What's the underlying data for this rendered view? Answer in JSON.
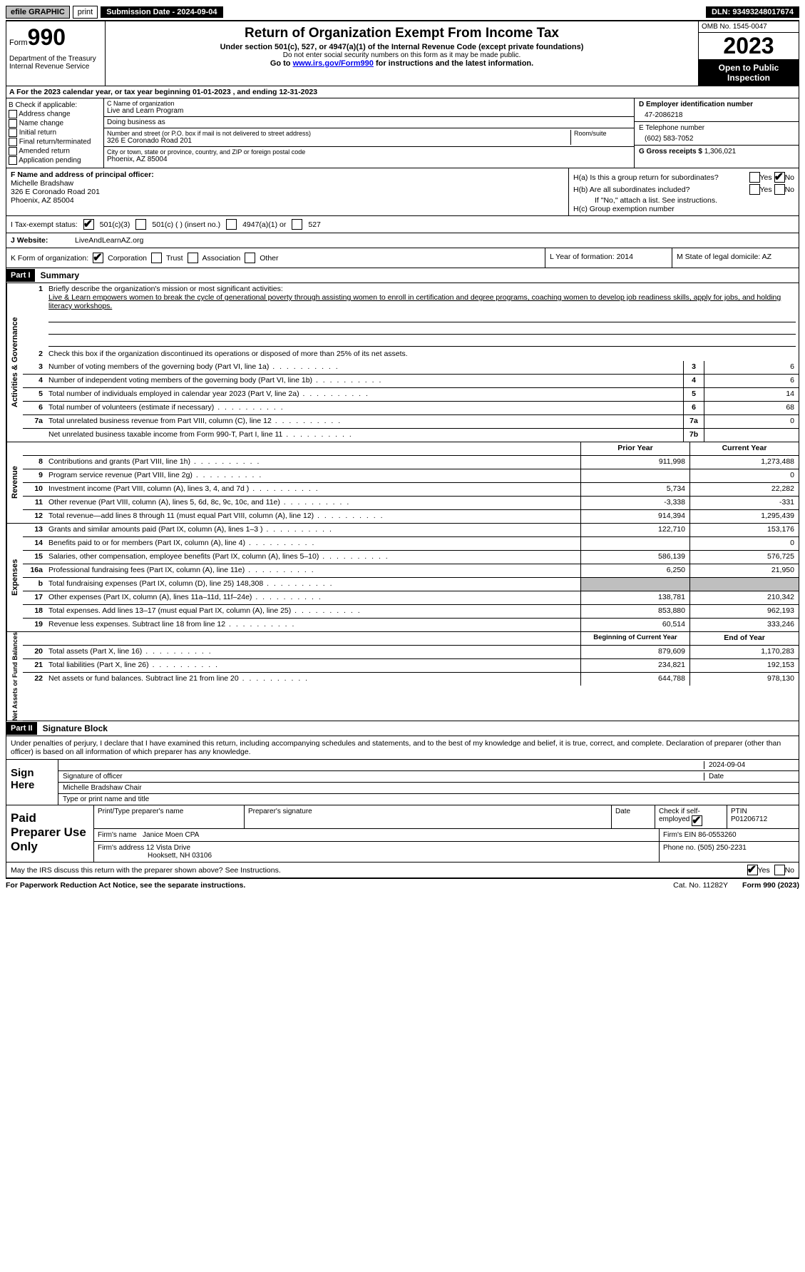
{
  "topbar": {
    "efile": "efile GRAPHIC",
    "print": "print",
    "submission": "Submission Date - 2024-09-04",
    "dln": "DLN: 93493248017674"
  },
  "header": {
    "form_word": "Form",
    "form_num": "990",
    "title": "Return of Organization Exempt From Income Tax",
    "sub1": "Under section 501(c), 527, or 4947(a)(1) of the Internal Revenue Code (except private foundations)",
    "sub2": "Do not enter social security numbers on this form as it may be made public.",
    "sub3_pre": "Go to ",
    "sub3_link": "www.irs.gov/Form990",
    "sub3_post": " for instructions and the latest information.",
    "dept": "Department of the Treasury\nInternal Revenue Service",
    "omb": "OMB No. 1545-0047",
    "year": "2023",
    "open": "Open to Public Inspection"
  },
  "calyear": "A  For the 2023 calendar year, or tax year beginning 01-01-2023   , and ending 12-31-2023",
  "colB": {
    "hdr": "B Check if applicable:",
    "items": [
      "Address change",
      "Name change",
      "Initial return",
      "Final return/terminated",
      "Amended return",
      "Application pending"
    ]
  },
  "colC": {
    "name_lbl": "C Name of organization",
    "name": "Live and Learn Program",
    "dba_lbl": "Doing business as",
    "street_lbl": "Number and street (or P.O. box if mail is not delivered to street address)",
    "street": "326 E Coronado Road 201",
    "room_lbl": "Room/suite",
    "city_lbl": "City or town, state or province, country, and ZIP or foreign postal code",
    "city": "Phoenix, AZ  85004"
  },
  "colD": {
    "ein_lbl": "D Employer identification number",
    "ein": "47-2086218",
    "tel_lbl": "E Telephone number",
    "tel": "(602) 583-7052",
    "gross_lbl": "G Gross receipts $",
    "gross": "1,306,021"
  },
  "colF": {
    "lbl": "F  Name and address of principal officer:",
    "name": "Michelle Bradshaw",
    "addr1": "326 E Coronado Road 201",
    "addr2": "Phoenix, AZ  85004"
  },
  "colH": {
    "ha": "H(a)  Is this a group return for subordinates?",
    "hb": "H(b)  Are all subordinates included?",
    "hb_note": "If \"No,\" attach a list. See instructions.",
    "hc": "H(c)  Group exemption number",
    "yes": "Yes",
    "no": "No"
  },
  "rowI": {
    "lbl": "I   Tax-exempt status:",
    "o1": "501(c)(3)",
    "o2": "501(c) (  ) (insert no.)",
    "o3": "4947(a)(1) or",
    "o4": "527"
  },
  "rowJ": {
    "lbl": "J   Website:",
    "val": "LiveAndLearnAZ.org"
  },
  "rowK": {
    "lbl": "K Form of organization:",
    "o1": "Corporation",
    "o2": "Trust",
    "o3": "Association",
    "o4": "Other",
    "L": "L Year of formation: 2014",
    "M": "M State of legal domicile: AZ"
  },
  "partI": {
    "hdr": "Part I",
    "title": "Summary"
  },
  "mission": {
    "q": "Briefly describe the organization's mission or most significant activities:",
    "text": "Live & Learn empowers women to break the cycle of generational poverty through assisting women to enroll in certification and degree programs, coaching women to develop job readiness skills, apply for jobs, and holding literacy workshops."
  },
  "q2": "Check this box      if the organization discontinued its operations or disposed of more than 25% of its net assets.",
  "lines_gov": [
    {
      "n": "3",
      "d": "Number of voting members of the governing body (Part VI, line 1a)",
      "bn": "3",
      "v": "6"
    },
    {
      "n": "4",
      "d": "Number of independent voting members of the governing body (Part VI, line 1b)",
      "bn": "4",
      "v": "6"
    },
    {
      "n": "5",
      "d": "Total number of individuals employed in calendar year 2023 (Part V, line 2a)",
      "bn": "5",
      "v": "14"
    },
    {
      "n": "6",
      "d": "Total number of volunteers (estimate if necessary)",
      "bn": "6",
      "v": "68"
    },
    {
      "n": "7a",
      "d": "Total unrelated business revenue from Part VIII, column (C), line 12",
      "bn": "7a",
      "v": "0"
    },
    {
      "n": "",
      "d": "Net unrelated business taxable income from Form 990-T, Part I, line 11",
      "bn": "7b",
      "v": ""
    }
  ],
  "pycy_hdr": {
    "py": "Prior Year",
    "cy": "Current Year"
  },
  "lines_rev": [
    {
      "n": "8",
      "d": "Contributions and grants (Part VIII, line 1h)",
      "py": "911,998",
      "cy": "1,273,488"
    },
    {
      "n": "9",
      "d": "Program service revenue (Part VIII, line 2g)",
      "py": "",
      "cy": "0"
    },
    {
      "n": "10",
      "d": "Investment income (Part VIII, column (A), lines 3, 4, and 7d )",
      "py": "5,734",
      "cy": "22,282"
    },
    {
      "n": "11",
      "d": "Other revenue (Part VIII, column (A), lines 5, 6d, 8c, 9c, 10c, and 11e)",
      "py": "-3,338",
      "cy": "-331"
    },
    {
      "n": "12",
      "d": "Total revenue—add lines 8 through 11 (must equal Part VIII, column (A), line 12)",
      "py": "914,394",
      "cy": "1,295,439"
    }
  ],
  "lines_exp": [
    {
      "n": "13",
      "d": "Grants and similar amounts paid (Part IX, column (A), lines 1–3 )",
      "py": "122,710",
      "cy": "153,176"
    },
    {
      "n": "14",
      "d": "Benefits paid to or for members (Part IX, column (A), line 4)",
      "py": "",
      "cy": "0"
    },
    {
      "n": "15",
      "d": "Salaries, other compensation, employee benefits (Part IX, column (A), lines 5–10)",
      "py": "586,139",
      "cy": "576,725"
    },
    {
      "n": "16a",
      "d": "Professional fundraising fees (Part IX, column (A), line 11e)",
      "py": "6,250",
      "cy": "21,950"
    },
    {
      "n": "b",
      "d": "Total fundraising expenses (Part IX, column (D), line 25) 148,308",
      "py": "",
      "cy": "",
      "grey": true
    },
    {
      "n": "17",
      "d": "Other expenses (Part IX, column (A), lines 11a–11d, 11f–24e)",
      "py": "138,781",
      "cy": "210,342"
    },
    {
      "n": "18",
      "d": "Total expenses. Add lines 13–17 (must equal Part IX, column (A), line 25)",
      "py": "853,880",
      "cy": "962,193"
    },
    {
      "n": "19",
      "d": "Revenue less expenses. Subtract line 18 from line 12",
      "py": "60,514",
      "cy": "333,246"
    }
  ],
  "na_hdr": {
    "py": "Beginning of Current Year",
    "cy": "End of Year"
  },
  "lines_na": [
    {
      "n": "20",
      "d": "Total assets (Part X, line 16)",
      "py": "879,609",
      "cy": "1,170,283"
    },
    {
      "n": "21",
      "d": "Total liabilities (Part X, line 26)",
      "py": "234,821",
      "cy": "192,153"
    },
    {
      "n": "22",
      "d": "Net assets or fund balances. Subtract line 21 from line 20",
      "py": "644,788",
      "cy": "978,130"
    }
  ],
  "side": {
    "gov": "Activities & Governance",
    "rev": "Revenue",
    "exp": "Expenses",
    "na": "Net Assets or Fund Balances"
  },
  "partII": {
    "hdr": "Part II",
    "title": "Signature Block"
  },
  "decl": "Under penalties of perjury, I declare that I have examined this return, including accompanying schedules and statements, and to the best of my knowledge and belief, it is true, correct, and complete. Declaration of preparer (other than officer) is based on all information of which preparer has any knowledge.",
  "sign": {
    "left": "Sign Here",
    "date": "2024-09-04",
    "sig_lbl": "Signature of officer",
    "date_lbl": "Date",
    "officer": "Michelle Bradshaw  Chair",
    "type_lbl": "Type or print name and title"
  },
  "paid": {
    "left": "Paid Preparer Use Only",
    "h1": "Print/Type preparer's name",
    "h2": "Preparer's signature",
    "h3": "Date",
    "h4": "Check        if self-employed",
    "h5": "PTIN",
    "ptin": "P01206712",
    "firm_lbl": "Firm's name",
    "firm": "Janice Moen CPA",
    "ein_lbl": "Firm's EIN",
    "ein": "86-0553260",
    "addr_lbl": "Firm's address",
    "addr1": "12 Vista Drive",
    "addr2": "Hooksett, NH  03106",
    "ph_lbl": "Phone no.",
    "ph": "(505) 250-2231"
  },
  "discuss": {
    "q": "May the IRS discuss this return with the preparer shown above? See Instructions.",
    "yes": "Yes",
    "no": "No"
  },
  "footer": {
    "l": "For Paperwork Reduction Act Notice, see the separate instructions.",
    "m": "Cat. No. 11282Y",
    "r": "Form 990 (2023)"
  }
}
